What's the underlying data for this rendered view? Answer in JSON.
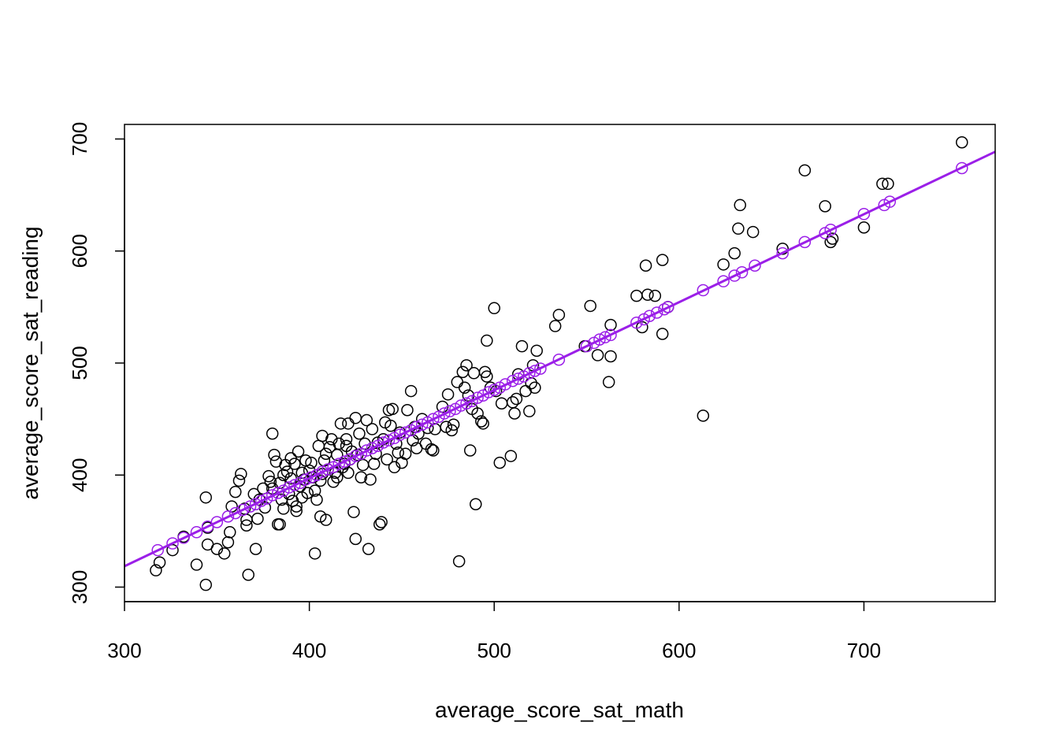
{
  "chart_data": {
    "type": "scatter",
    "title": "",
    "xlabel": "average_score_sat_math",
    "ylabel": "average_score_sat_reading",
    "xlim": [
      300,
      771
    ],
    "ylim": [
      287,
      713
    ],
    "x_ticks": [
      300,
      400,
      500,
      600,
      700
    ],
    "y_ticks": [
      300,
      400,
      500,
      600,
      700
    ],
    "x_tick_labels": [
      "300",
      "400",
      "500",
      "600",
      "700"
    ],
    "y_tick_labels": [
      "300",
      "400",
      "500",
      "600",
      "700"
    ],
    "grid": false,
    "legend": "none",
    "colors": {
      "observed": "#000000",
      "fitted": "#9b1fe8",
      "fit_line": "#9b1fe8"
    },
    "fit_line": {
      "slope": 0.7855,
      "intercept": 83.0,
      "x_range": [
        300,
        771
      ]
    },
    "series": [
      {
        "role": "observed",
        "marker": "open-circle",
        "points": [
          [
            317,
            315
          ],
          [
            319,
            322
          ],
          [
            326,
            333
          ],
          [
            332,
            345
          ],
          [
            339,
            320
          ],
          [
            344,
            302
          ],
          [
            344,
            380
          ],
          [
            345,
            338
          ],
          [
            345,
            353
          ],
          [
            350,
            334
          ],
          [
            354,
            330
          ],
          [
            356,
            340
          ],
          [
            357,
            349
          ],
          [
            358,
            372
          ],
          [
            360,
            385
          ],
          [
            362,
            395
          ],
          [
            363,
            401
          ],
          [
            365,
            370
          ],
          [
            366,
            360
          ],
          [
            366,
            355
          ],
          [
            367,
            311
          ],
          [
            370,
            383
          ],
          [
            371,
            334
          ],
          [
            372,
            361
          ],
          [
            373,
            378
          ],
          [
            375,
            388
          ],
          [
            376,
            371
          ],
          [
            378,
            399
          ],
          [
            379,
            394
          ],
          [
            380,
            388
          ],
          [
            380,
            437
          ],
          [
            381,
            418
          ],
          [
            382,
            412
          ],
          [
            383,
            356
          ],
          [
            384,
            356
          ],
          [
            384,
            393
          ],
          [
            385,
            378
          ],
          [
            386,
            400
          ],
          [
            386,
            370
          ],
          [
            387,
            409
          ],
          [
            388,
            403
          ],
          [
            389,
            383
          ],
          [
            390,
            397
          ],
          [
            390,
            415
          ],
          [
            391,
            377
          ],
          [
            392,
            410
          ],
          [
            393,
            372
          ],
          [
            393,
            368
          ],
          [
            394,
            421
          ],
          [
            395,
            390
          ],
          [
            396,
            402
          ],
          [
            396,
            380
          ],
          [
            397,
            396
          ],
          [
            398,
            413
          ],
          [
            399,
            384
          ],
          [
            400,
            404
          ],
          [
            401,
            411
          ],
          [
            402,
            398
          ],
          [
            403,
            330
          ],
          [
            403,
            386
          ],
          [
            404,
            378
          ],
          [
            405,
            426
          ],
          [
            406,
            363
          ],
          [
            406,
            395
          ],
          [
            407,
            401
          ],
          [
            407,
            435
          ],
          [
            408,
            413
          ],
          [
            409,
            360
          ],
          [
            409,
            419
          ],
          [
            410,
            405
          ],
          [
            411,
            425
          ],
          [
            412,
            432
          ],
          [
            413,
            394
          ],
          [
            414,
            402
          ],
          [
            415,
            398
          ],
          [
            415,
            418
          ],
          [
            416,
            428
          ],
          [
            417,
            446
          ],
          [
            418,
            407
          ],
          [
            419,
            410
          ],
          [
            420,
            426
          ],
          [
            420,
            432
          ],
          [
            421,
            402
          ],
          [
            421,
            446
          ],
          [
            422,
            414
          ],
          [
            423,
            421
          ],
          [
            424,
            367
          ],
          [
            425,
            451
          ],
          [
            425,
            343
          ],
          [
            426,
            418
          ],
          [
            427,
            437
          ],
          [
            428,
            398
          ],
          [
            429,
            409
          ],
          [
            430,
            428
          ],
          [
            431,
            449
          ],
          [
            432,
            334
          ],
          [
            433,
            396
          ],
          [
            434,
            441
          ],
          [
            435,
            410
          ],
          [
            436,
            419
          ],
          [
            437,
            429
          ],
          [
            438,
            356
          ],
          [
            439,
            358
          ],
          [
            440,
            432
          ],
          [
            441,
            447
          ],
          [
            442,
            414
          ],
          [
            443,
            458
          ],
          [
            444,
            444
          ],
          [
            445,
            459
          ],
          [
            446,
            407
          ],
          [
            447,
            428
          ],
          [
            448,
            420
          ],
          [
            449,
            438
          ],
          [
            450,
            411
          ],
          [
            452,
            419
          ],
          [
            453,
            458
          ],
          [
            455,
            475
          ],
          [
            456,
            431
          ],
          [
            457,
            443
          ],
          [
            458,
            424
          ],
          [
            459,
            437
          ],
          [
            461,
            450
          ],
          [
            463,
            428
          ],
          [
            464,
            442
          ],
          [
            466,
            423
          ],
          [
            467,
            422
          ],
          [
            468,
            441
          ],
          [
            472,
            461
          ],
          [
            474,
            443
          ],
          [
            475,
            472
          ],
          [
            477,
            440
          ],
          [
            478,
            445
          ],
          [
            480,
            483
          ],
          [
            481,
            323
          ],
          [
            483,
            492
          ],
          [
            484,
            478
          ],
          [
            485,
            498
          ],
          [
            486,
            471
          ],
          [
            487,
            422
          ],
          [
            488,
            459
          ],
          [
            489,
            491
          ],
          [
            490,
            374
          ],
          [
            491,
            455
          ],
          [
            493,
            448
          ],
          [
            494,
            446
          ],
          [
            495,
            492
          ],
          [
            496,
            520
          ],
          [
            496,
            488
          ],
          [
            498,
            478
          ],
          [
            500,
            549
          ],
          [
            501,
            475
          ],
          [
            503,
            411
          ],
          [
            504,
            464
          ],
          [
            509,
            417
          ],
          [
            510,
            465
          ],
          [
            511,
            455
          ],
          [
            512,
            468
          ],
          [
            513,
            490
          ],
          [
            515,
            515
          ],
          [
            517,
            475
          ],
          [
            519,
            457
          ],
          [
            520,
            482
          ],
          [
            521,
            498
          ],
          [
            522,
            478
          ],
          [
            523,
            511
          ],
          [
            533,
            533
          ],
          [
            535,
            543
          ],
          [
            549,
            515
          ],
          [
            552,
            551
          ],
          [
            556,
            507
          ],
          [
            562,
            483
          ],
          [
            563,
            506
          ],
          [
            563,
            534
          ],
          [
            577,
            560
          ],
          [
            580,
            532
          ],
          [
            582,
            587
          ],
          [
            583,
            561
          ],
          [
            587,
            560
          ],
          [
            591,
            526
          ],
          [
            591,
            592
          ],
          [
            594,
            550
          ],
          [
            613,
            453
          ],
          [
            624,
            588
          ],
          [
            630,
            598
          ],
          [
            632,
            620
          ],
          [
            633,
            641
          ],
          [
            640,
            617
          ],
          [
            656,
            602
          ],
          [
            668,
            672
          ],
          [
            679,
            640
          ],
          [
            682,
            608
          ],
          [
            683,
            611
          ],
          [
            700,
            621
          ],
          [
            710,
            660
          ],
          [
            713,
            660
          ],
          [
            753,
            697
          ]
        ]
      },
      {
        "role": "fitted",
        "marker": "open-circle",
        "points": [
          [
            318,
            333
          ],
          [
            326,
            339
          ],
          [
            332,
            344
          ],
          [
            339,
            349
          ],
          [
            345,
            354
          ],
          [
            350,
            358
          ],
          [
            356,
            363
          ],
          [
            360,
            366
          ],
          [
            364,
            369
          ],
          [
            368,
            372
          ],
          [
            371,
            374
          ],
          [
            374,
            377
          ],
          [
            377,
            379
          ],
          [
            380,
            382
          ],
          [
            383,
            384
          ],
          [
            386,
            386
          ],
          [
            389,
            389
          ],
          [
            392,
            391
          ],
          [
            395,
            393
          ],
          [
            398,
            396
          ],
          [
            401,
            398
          ],
          [
            404,
            400
          ],
          [
            407,
            403
          ],
          [
            410,
            405
          ],
          [
            413,
            407
          ],
          [
            416,
            410
          ],
          [
            419,
            412
          ],
          [
            422,
            414
          ],
          [
            425,
            417
          ],
          [
            428,
            419
          ],
          [
            431,
            422
          ],
          [
            434,
            424
          ],
          [
            437,
            426
          ],
          [
            440,
            429
          ],
          [
            443,
            431
          ],
          [
            446,
            433
          ],
          [
            449,
            436
          ],
          [
            452,
            438
          ],
          [
            455,
            440
          ],
          [
            458,
            443
          ],
          [
            461,
            445
          ],
          [
            464,
            447
          ],
          [
            467,
            450
          ],
          [
            470,
            452
          ],
          [
            473,
            455
          ],
          [
            476,
            457
          ],
          [
            479,
            459
          ],
          [
            482,
            462
          ],
          [
            485,
            464
          ],
          [
            488,
            466
          ],
          [
            491,
            469
          ],
          [
            494,
            471
          ],
          [
            497,
            474
          ],
          [
            500,
            476
          ],
          [
            503,
            478
          ],
          [
            506,
            481
          ],
          [
            510,
            484
          ],
          [
            513,
            486
          ],
          [
            516,
            488
          ],
          [
            519,
            491
          ],
          [
            522,
            493
          ],
          [
            525,
            495
          ],
          [
            535,
            503
          ],
          [
            550,
            515
          ],
          [
            554,
            518
          ],
          [
            557,
            521
          ],
          [
            560,
            523
          ],
          [
            563,
            525
          ],
          [
            577,
            536
          ],
          [
            581,
            539
          ],
          [
            584,
            542
          ],
          [
            588,
            545
          ],
          [
            592,
            548
          ],
          [
            594,
            550
          ],
          [
            613,
            565
          ],
          [
            624,
            573
          ],
          [
            630,
            578
          ],
          [
            634,
            581
          ],
          [
            641,
            587
          ],
          [
            656,
            598
          ],
          [
            668,
            608
          ],
          [
            679,
            616
          ],
          [
            682,
            619
          ],
          [
            700,
            633
          ],
          [
            711,
            641
          ],
          [
            714,
            644
          ],
          [
            753,
            674
          ]
        ]
      }
    ]
  }
}
